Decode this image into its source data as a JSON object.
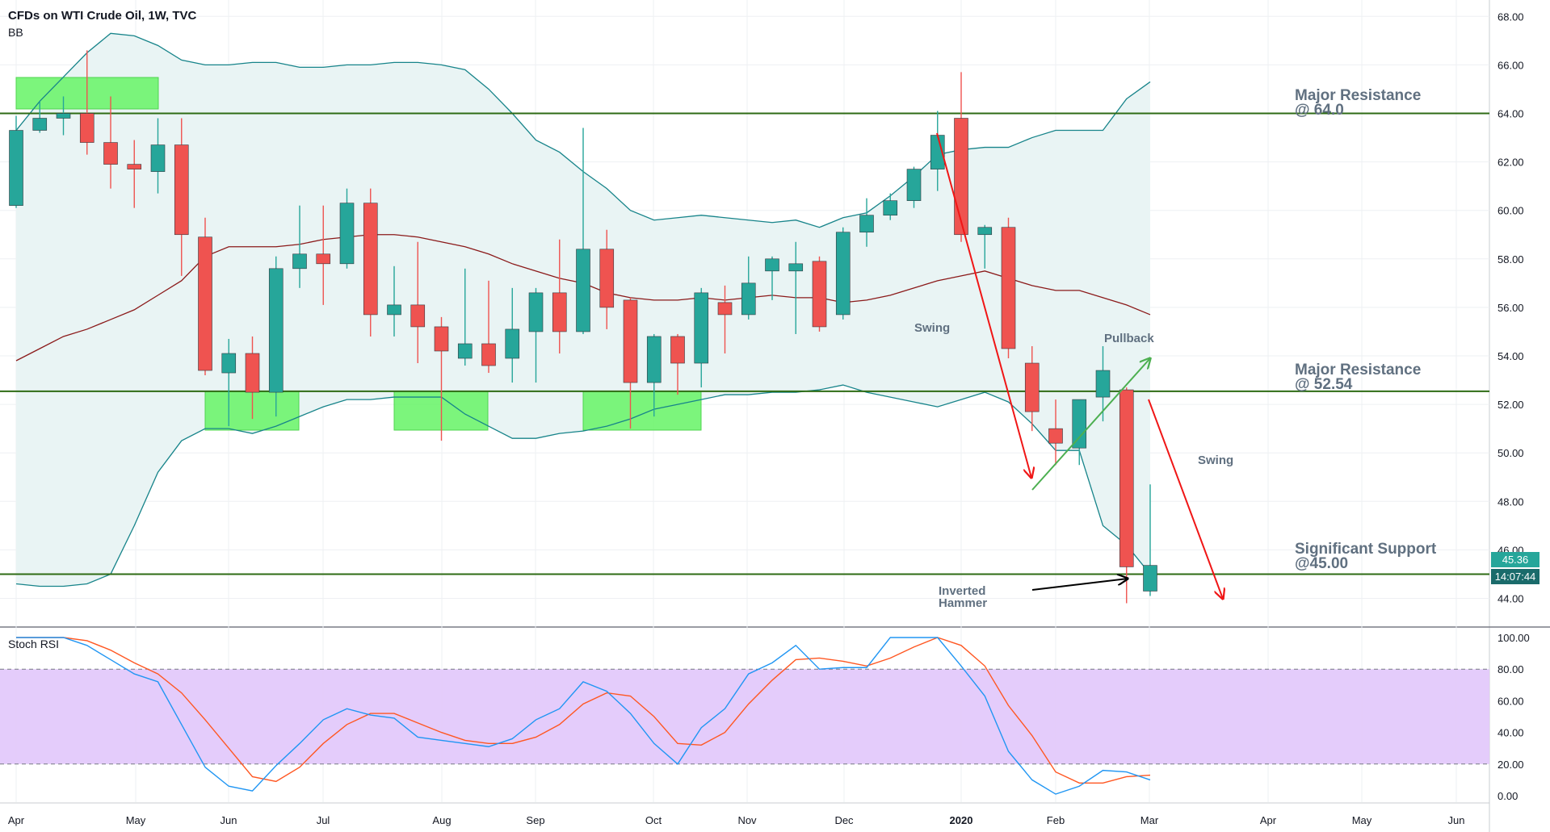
{
  "header": {
    "title": "CFDs on WTI Crude Oil, 1W, TVC",
    "indicator": "BB",
    "rsi_label": "Stoch RSI"
  },
  "colors": {
    "up": "#26a69a",
    "down": "#ef5350",
    "bb_band": "#17848a",
    "bb_basis": "#8b1a1a",
    "bb_fill": "#e9f4f4",
    "level_line": "#2e6b14",
    "zone_fill": "#6ef56e",
    "rsi_k": "#2196f3",
    "rsi_d": "#ff5722",
    "rsi_band": "#e1c6fb",
    "red_arrow": "#f01616",
    "green_arrow": "#4caf50",
    "black_arrow": "#000000",
    "annotation_text": "#607080"
  },
  "price_axis": {
    "ticks": [
      "68.00",
      "66.00",
      "64.00",
      "62.00",
      "60.00",
      "58.00",
      "56.00",
      "54.00",
      "52.00",
      "50.00",
      "48.00",
      "46.00",
      "44.00"
    ],
    "last_price": "45.36",
    "countdown": "14:07:44"
  },
  "rsi_axis": {
    "ticks": [
      "100.00",
      "80.00",
      "60.00",
      "40.00",
      "20.00",
      "0.00"
    ]
  },
  "time_axis": {
    "ticks": [
      "Apr",
      "May",
      "Jun",
      "Jul",
      "Aug",
      "Sep",
      "Oct",
      "Nov",
      "Dec",
      "2020",
      "Feb",
      "Mar",
      "Apr",
      "May",
      "Jun"
    ]
  },
  "annotations": {
    "res1": [
      "Major Resistance",
      "@ 64.0"
    ],
    "res2": [
      "Major Resistance",
      "@ 52.54"
    ],
    "sup": [
      "Significant Support",
      "@45.00"
    ],
    "swing1": "Swing",
    "swing2": "Swing",
    "pullback": "Pullback",
    "hammer": [
      "Inverted",
      "Hammer"
    ]
  },
  "chart_data": {
    "type": "candlestick",
    "ylim": [
      43,
      68.8
    ],
    "levels": [
      64.0,
      52.54,
      45.0
    ],
    "candles": [
      {
        "o": 60.2,
        "h": 63.9,
        "l": 60.1,
        "c": 63.3
      },
      {
        "o": 63.3,
        "h": 64.5,
        "l": 63.2,
        "c": 63.8
      },
      {
        "o": 63.8,
        "h": 64.7,
        "l": 63.1,
        "c": 64.0
      },
      {
        "o": 64.0,
        "h": 66.6,
        "l": 62.3,
        "c": 62.8
      },
      {
        "o": 62.8,
        "h": 64.7,
        "l": 60.9,
        "c": 61.9
      },
      {
        "o": 61.9,
        "h": 62.9,
        "l": 60.1,
        "c": 61.7
      },
      {
        "o": 61.6,
        "h": 63.8,
        "l": 60.7,
        "c": 62.7
      },
      {
        "o": 62.7,
        "h": 63.8,
        "l": 57.3,
        "c": 59.0
      },
      {
        "o": 58.9,
        "h": 59.7,
        "l": 53.2,
        "c": 53.4
      },
      {
        "o": 53.3,
        "h": 54.7,
        "l": 51.1,
        "c": 54.1
      },
      {
        "o": 54.1,
        "h": 54.8,
        "l": 51.4,
        "c": 52.5
      },
      {
        "o": 52.5,
        "h": 58.1,
        "l": 51.5,
        "c": 57.6
      },
      {
        "o": 57.6,
        "h": 60.2,
        "l": 56.8,
        "c": 58.2
      },
      {
        "o": 58.2,
        "h": 60.2,
        "l": 56.1,
        "c": 57.8
      },
      {
        "o": 57.8,
        "h": 60.9,
        "l": 57.6,
        "c": 60.3
      },
      {
        "o": 60.3,
        "h": 60.9,
        "l": 54.8,
        "c": 55.7
      },
      {
        "o": 55.7,
        "h": 57.7,
        "l": 54.8,
        "c": 56.1
      },
      {
        "o": 56.1,
        "h": 58.7,
        "l": 53.7,
        "c": 55.2
      },
      {
        "o": 55.2,
        "h": 55.6,
        "l": 50.5,
        "c": 54.2
      },
      {
        "o": 53.9,
        "h": 57.6,
        "l": 53.6,
        "c": 54.5
      },
      {
        "o": 54.5,
        "h": 57.1,
        "l": 53.3,
        "c": 53.6
      },
      {
        "o": 53.9,
        "h": 56.8,
        "l": 52.9,
        "c": 55.1
      },
      {
        "o": 55.0,
        "h": 56.8,
        "l": 52.9,
        "c": 56.6
      },
      {
        "o": 56.6,
        "h": 58.8,
        "l": 54.1,
        "c": 55.0
      },
      {
        "o": 55.0,
        "h": 63.4,
        "l": 54.9,
        "c": 58.4
      },
      {
        "o": 58.4,
        "h": 59.2,
        "l": 55.1,
        "c": 56.0
      },
      {
        "o": 56.3,
        "h": 56.4,
        "l": 51.0,
        "c": 52.9
      },
      {
        "o": 52.9,
        "h": 54.9,
        "l": 51.5,
        "c": 54.8
      },
      {
        "o": 54.8,
        "h": 54.9,
        "l": 52.4,
        "c": 53.7
      },
      {
        "o": 53.7,
        "h": 56.8,
        "l": 52.7,
        "c": 56.6
      },
      {
        "o": 56.2,
        "h": 56.9,
        "l": 54.1,
        "c": 55.7
      },
      {
        "o": 55.7,
        "h": 58.1,
        "l": 55.5,
        "c": 57.0
      },
      {
        "o": 57.5,
        "h": 58.1,
        "l": 56.3,
        "c": 58.0
      },
      {
        "o": 57.5,
        "h": 58.7,
        "l": 54.9,
        "c": 57.8
      },
      {
        "o": 57.9,
        "h": 58.1,
        "l": 55.0,
        "c": 55.2
      },
      {
        "o": 55.7,
        "h": 59.3,
        "l": 55.5,
        "c": 59.1
      },
      {
        "o": 59.1,
        "h": 60.5,
        "l": 58.5,
        "c": 59.8
      },
      {
        "o": 59.8,
        "h": 60.7,
        "l": 59.6,
        "c": 60.4
      },
      {
        "o": 60.4,
        "h": 61.8,
        "l": 60.1,
        "c": 61.7
      },
      {
        "o": 61.7,
        "h": 64.1,
        "l": 60.8,
        "c": 63.1
      },
      {
        "o": 63.8,
        "h": 65.7,
        "l": 58.7,
        "c": 59.0
      },
      {
        "o": 59.0,
        "h": 59.4,
        "l": 57.6,
        "c": 59.3
      },
      {
        "o": 59.3,
        "h": 59.7,
        "l": 53.9,
        "c": 54.3
      },
      {
        "o": 53.7,
        "h": 54.4,
        "l": 50.9,
        "c": 51.7
      },
      {
        "o": 51.0,
        "h": 52.2,
        "l": 49.5,
        "c": 50.4
      },
      {
        "o": 50.2,
        "h": 52.2,
        "l": 49.5,
        "c": 52.2
      },
      {
        "o": 52.3,
        "h": 54.4,
        "l": 51.3,
        "c": 53.4
      },
      {
        "o": 52.6,
        "h": 52.7,
        "l": 43.8,
        "c": 45.3
      },
      {
        "o": 44.3,
        "h": 48.7,
        "l": 44.1,
        "c": 45.36
      }
    ],
    "bb_upper": [
      63.3,
      64.5,
      65.5,
      66.5,
      67.3,
      67.2,
      66.8,
      66.2,
      66.0,
      66.0,
      66.1,
      66.1,
      65.9,
      65.9,
      66.0,
      66.0,
      66.1,
      66.1,
      66.0,
      65.8,
      65.0,
      64.0,
      62.9,
      62.4,
      61.6,
      60.9,
      60.0,
      59.6,
      59.7,
      59.8,
      59.7,
      59.6,
      59.5,
      59.6,
      59.3,
      59.7,
      59.9,
      60.6,
      61.4,
      62.3,
      62.5,
      62.6,
      62.6,
      63.0,
      63.3,
      63.3,
      63.3,
      64.6,
      65.3
    ],
    "bb_basis": [
      53.8,
      54.3,
      54.8,
      55.1,
      55.5,
      55.9,
      56.5,
      57.1,
      58.1,
      58.5,
      58.5,
      58.5,
      58.6,
      58.8,
      58.9,
      59.0,
      59.0,
      58.9,
      58.7,
      58.5,
      58.2,
      57.8,
      57.5,
      57.2,
      57.0,
      56.6,
      56.4,
      56.3,
      56.3,
      56.4,
      56.3,
      56.4,
      56.5,
      56.4,
      56.4,
      56.2,
      56.3,
      56.5,
      56.8,
      57.1,
      57.3,
      57.5,
      57.2,
      56.9,
      56.7,
      56.7,
      56.4,
      56.1,
      55.7
    ],
    "bb_lower": [
      44.6,
      44.5,
      44.5,
      44.6,
      45.0,
      47.0,
      49.2,
      50.5,
      51.0,
      51.0,
      50.8,
      51.1,
      51.5,
      51.9,
      52.2,
      52.2,
      52.3,
      52.3,
      52.3,
      51.6,
      51.1,
      50.6,
      50.6,
      50.8,
      50.9,
      51.1,
      51.4,
      51.8,
      52.0,
      52.2,
      52.4,
      52.4,
      52.5,
      52.5,
      52.6,
      52.8,
      52.5,
      52.3,
      52.1,
      51.9,
      52.2,
      52.5,
      52.1,
      51.2,
      50.1,
      50.1,
      47.0,
      46.2,
      45.0
    ],
    "stoch_rsi_k": [
      100,
      100,
      100,
      95,
      86,
      77,
      72,
      45,
      18,
      6,
      3,
      19,
      33,
      48,
      55,
      51,
      49,
      37,
      35,
      33,
      31,
      36,
      48,
      55,
      72,
      66,
      52,
      33,
      20,
      43,
      55,
      77,
      84,
      95,
      80,
      81,
      81,
      100,
      100,
      100,
      82,
      63,
      28,
      10,
      1,
      6,
      16,
      15,
      10
    ],
    "stoch_rsi_d": [
      100,
      100,
      100,
      98,
      92,
      84,
      77,
      65,
      48,
      30,
      12,
      9,
      18,
      33,
      45,
      52,
      52,
      46,
      40,
      35,
      33,
      33,
      37,
      45,
      58,
      65,
      63,
      50,
      33,
      32,
      40,
      58,
      73,
      86,
      87,
      85,
      82,
      87,
      94,
      100,
      95,
      82,
      57,
      38,
      15,
      8,
      8,
      12,
      13
    ],
    "stoch_rsi_band": [
      20,
      80
    ]
  }
}
